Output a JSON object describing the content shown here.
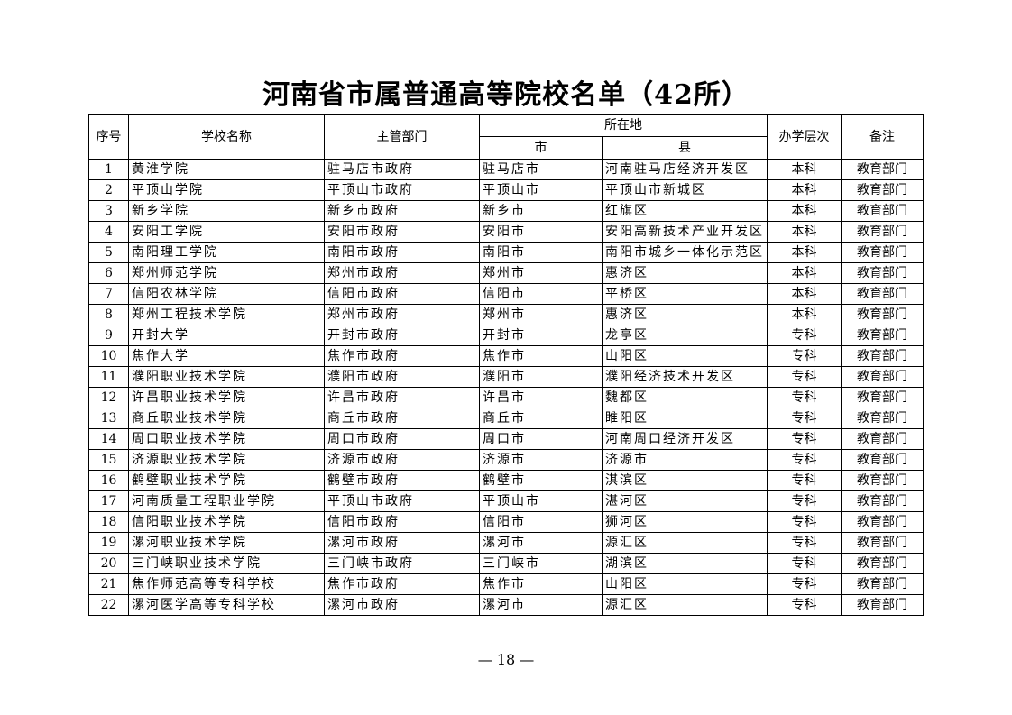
{
  "title": "河南省市属普通高等院校名单（42所）",
  "headers": {
    "index": "序号",
    "school": "学校名称",
    "authority": "主管部门",
    "location": "所在地",
    "city": "市",
    "county": "县",
    "level": "办学层次",
    "remark": "备注"
  },
  "rows": [
    [
      "1",
      "黄淮学院",
      "驻马店市政府",
      "驻马店市",
      "河南驻马店经济开发区",
      "本科",
      "教育部门"
    ],
    [
      "2",
      "平顶山学院",
      "平顶山市政府",
      "平顶山市",
      "平顶山市新城区",
      "本科",
      "教育部门"
    ],
    [
      "3",
      "新乡学院",
      "新乡市政府",
      "新乡市",
      "红旗区",
      "本科",
      "教育部门"
    ],
    [
      "4",
      "安阳工学院",
      "安阳市政府",
      "安阳市",
      "安阳高新技术产业开发区",
      "本科",
      "教育部门"
    ],
    [
      "5",
      "南阳理工学院",
      "南阳市政府",
      "南阳市",
      "南阳市城乡一体化示范区",
      "本科",
      "教育部门"
    ],
    [
      "6",
      "郑州师范学院",
      "郑州市政府",
      "郑州市",
      "惠济区",
      "本科",
      "教育部门"
    ],
    [
      "7",
      "信阳农林学院",
      "信阳市政府",
      "信阳市",
      "平桥区",
      "本科",
      "教育部门"
    ],
    [
      "8",
      "郑州工程技术学院",
      "郑州市政府",
      "郑州市",
      "惠济区",
      "本科",
      "教育部门"
    ],
    [
      "9",
      "开封大学",
      "开封市政府",
      "开封市",
      "龙亭区",
      "专科",
      "教育部门"
    ],
    [
      "10",
      "焦作大学",
      "焦作市政府",
      "焦作市",
      "山阳区",
      "专科",
      "教育部门"
    ],
    [
      "11",
      "濮阳职业技术学院",
      "濮阳市政府",
      "濮阳市",
      "濮阳经济技术开发区",
      "专科",
      "教育部门"
    ],
    [
      "12",
      "许昌职业技术学院",
      "许昌市政府",
      "许昌市",
      "魏都区",
      "专科",
      "教育部门"
    ],
    [
      "13",
      "商丘职业技术学院",
      "商丘市政府",
      "商丘市",
      "睢阳区",
      "专科",
      "教育部门"
    ],
    [
      "14",
      "周口职业技术学院",
      "周口市政府",
      "周口市",
      "河南周口经济开发区",
      "专科",
      "教育部门"
    ],
    [
      "15",
      "济源职业技术学院",
      "济源市政府",
      "济源市",
      "济源市",
      "专科",
      "教育部门"
    ],
    [
      "16",
      "鹤壁职业技术学院",
      "鹤壁市政府",
      "鹤壁市",
      "淇滨区",
      "专科",
      "教育部门"
    ],
    [
      "17",
      "河南质量工程职业学院",
      "平顶山市政府",
      "平顶山市",
      "湛河区",
      "专科",
      "教育部门"
    ],
    [
      "18",
      "信阳职业技术学院",
      "信阳市政府",
      "信阳市",
      "狮河区",
      "专科",
      "教育部门"
    ],
    [
      "19",
      "漯河职业技术学院",
      "漯河市政府",
      "漯河市",
      "源汇区",
      "专科",
      "教育部门"
    ],
    [
      "20",
      "三门峡职业技术学院",
      "三门峡市政府",
      "三门峡市",
      "湖滨区",
      "专科",
      "教育部门"
    ],
    [
      "21",
      "焦作师范高等专科学校",
      "焦作市政府",
      "焦作市",
      "山阳区",
      "专科",
      "教育部门"
    ],
    [
      "22",
      "漯河医学高等专科学校",
      "漯河市政府",
      "漯河市",
      "源汇区",
      "专科",
      "教育部门"
    ]
  ],
  "page_number": "— 18 —"
}
